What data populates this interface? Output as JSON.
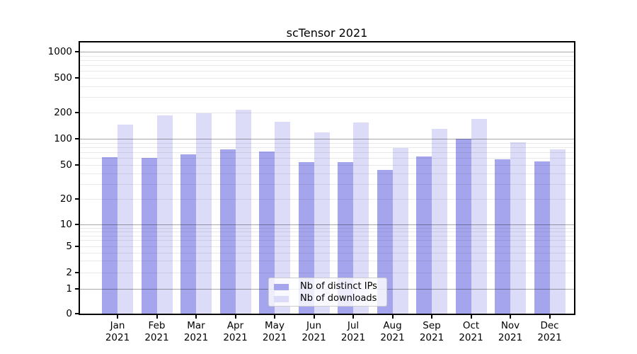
{
  "title": "scTensor 2021",
  "colors": {
    "bar_ips": "#a5a5ee",
    "bar_downloads": "#dcdcf8",
    "grid_major": "#a8a8a8",
    "grid_minor": "#e9e9e9",
    "axis": "#000000",
    "legend_border": "#cccccc"
  },
  "legend": {
    "items": [
      {
        "label": "Nb of distinct IPs",
        "color_key": "bar_ips"
      },
      {
        "label": "Nb of downloads",
        "color_key": "bar_downloads"
      }
    ],
    "position": "inside-bottom-center"
  },
  "chart_data": {
    "type": "bar",
    "title": "scTensor 2021",
    "categories": [
      "Jan 2021",
      "Feb 2021",
      "Mar 2021",
      "Apr 2021",
      "May 2021",
      "Jun 2021",
      "Jul 2021",
      "Aug 2021",
      "Sep 2021",
      "Oct 2021",
      "Nov 2021",
      "Dec 2021"
    ],
    "x_tick_months": [
      "Jan",
      "Feb",
      "Mar",
      "Apr",
      "May",
      "Jun",
      "Jul",
      "Aug",
      "Sep",
      "Oct",
      "Nov",
      "Dec"
    ],
    "x_tick_year": "2021",
    "series": [
      {
        "name": "Nb of distinct IPs",
        "values": [
          61,
          60,
          66,
          75,
          72,
          54,
          54,
          44,
          63,
          100,
          58,
          55
        ]
      },
      {
        "name": "Nb of downloads",
        "values": [
          145,
          185,
          195,
          216,
          158,
          118,
          155,
          78,
          130,
          168,
          91,
          76
        ]
      }
    ],
    "xlabel": "",
    "ylabel": "",
    "yscale": "log-like (compressed pseudo-log with 0 baseline)",
    "y_ticks": [
      0,
      1,
      2,
      5,
      10,
      20,
      50,
      100,
      200,
      500,
      1000
    ],
    "y_minor_gridlines": [
      2,
      3,
      4,
      5,
      6,
      7,
      8,
      9,
      20,
      30,
      40,
      50,
      60,
      70,
      80,
      90,
      200,
      300,
      400,
      500,
      600,
      700,
      800,
      900
    ],
    "y_major_gridlines": [
      1,
      10,
      100,
      1000
    ],
    "ylim": [
      0,
      1300
    ],
    "grid": "on",
    "legend_position": "lower center (inside axes)"
  }
}
